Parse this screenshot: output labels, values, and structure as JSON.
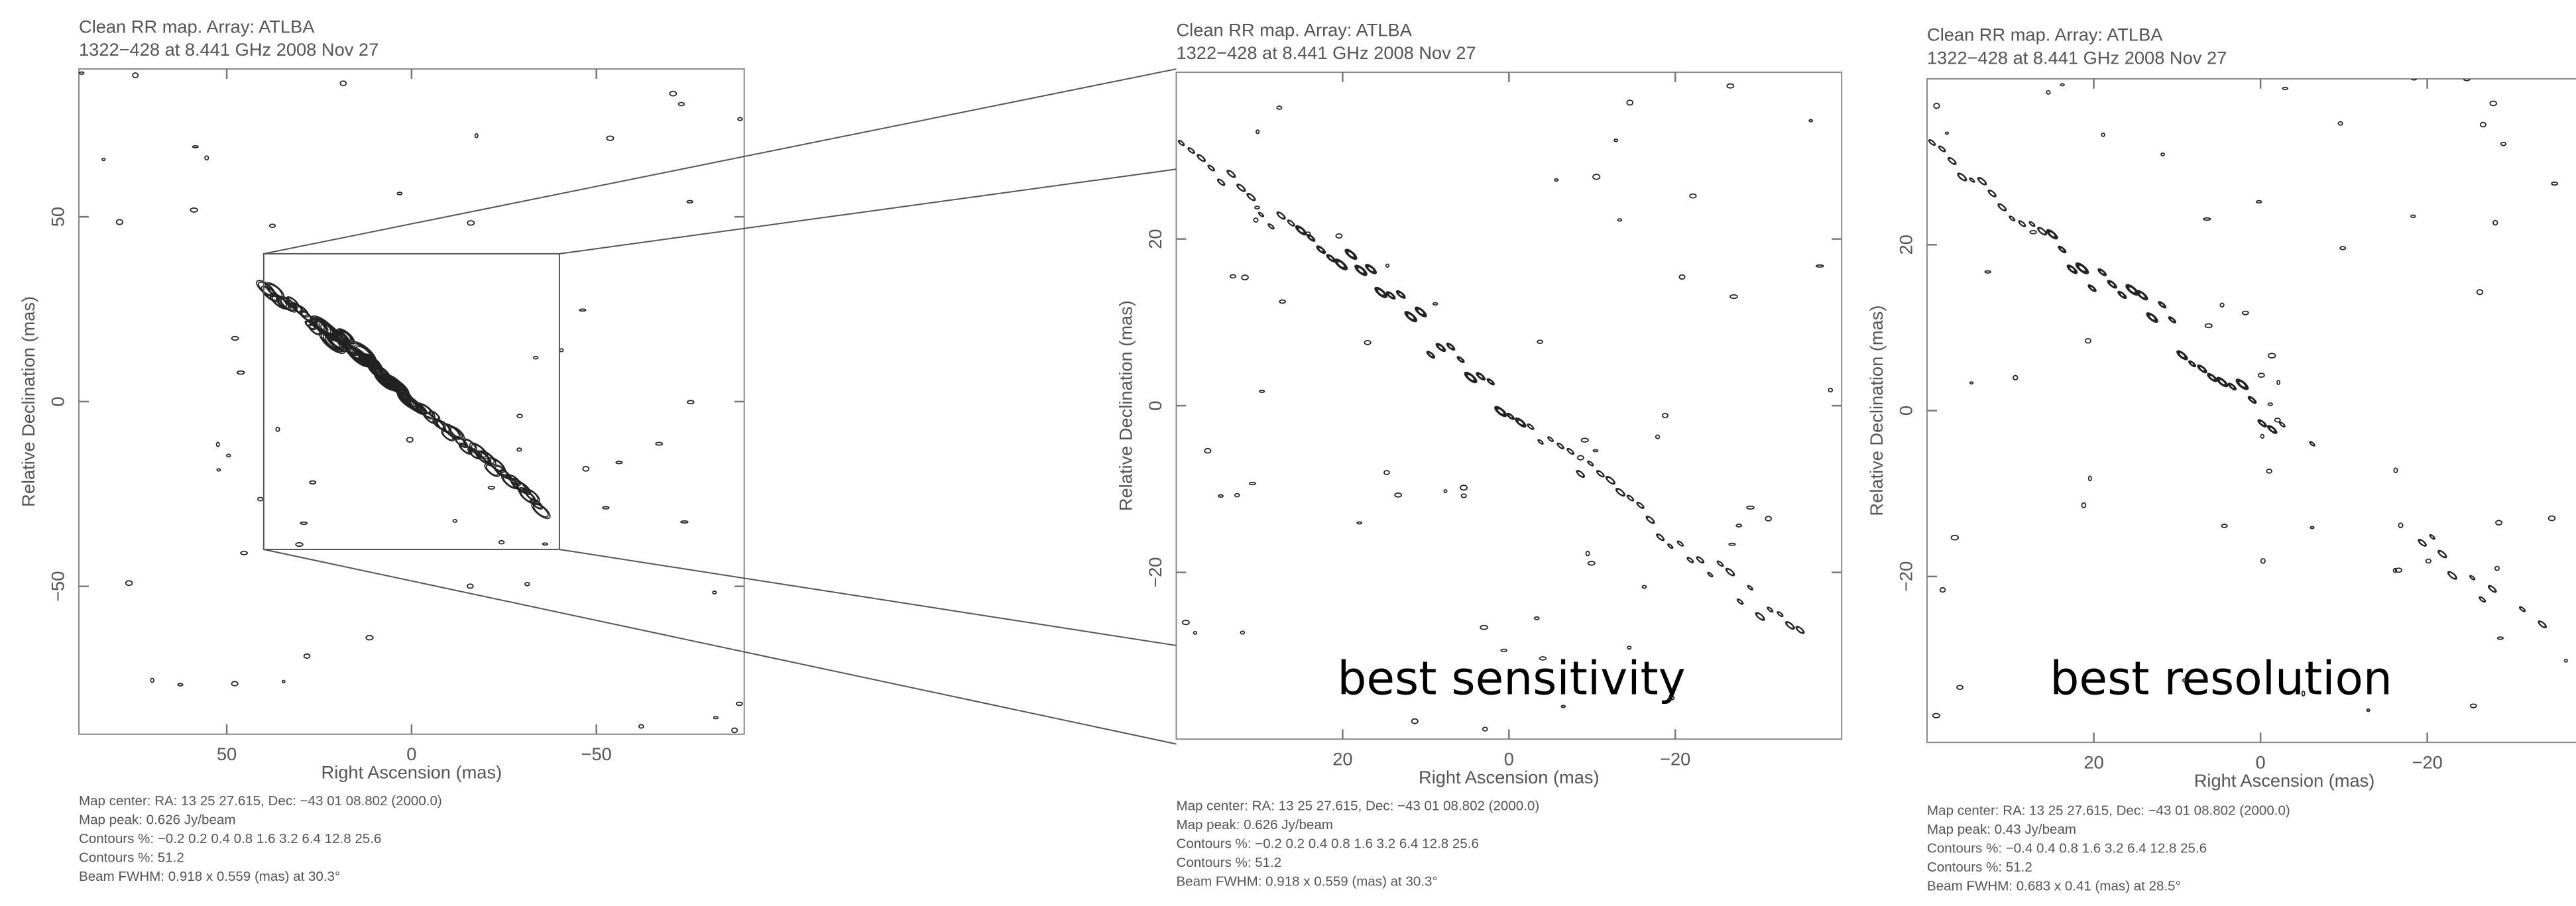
{
  "chart_data": [
    {
      "type": "contour",
      "title": "Clean RR map.  Array:  ATLBA",
      "subtitle": "1322−428 at 8.441 GHz 2008 Nov 27",
      "xlabel": "Right Ascension   (mas)",
      "ylabel": "Relative Declination   (mas)",
      "xlim": [
        90,
        -90
      ],
      "ylim": [
        -90,
        90
      ],
      "xticks": [
        50,
        0,
        {
          "value": -50,
          "label": "−50"
        }
      ],
      "yticks": [
        {
          "value": -50,
          "label": "−50"
        },
        0,
        50
      ],
      "notes": [
        "Map center:  RA: 13 25 27.615,  Dec: −43 01 08.802 (2000.0)",
        "Map peak: 0.626 Jy/beam",
        "Contours %: −0.2 0.2 0.4 0.8 1.6 3.2 6.4 12.8 25.6",
        "Contours %: 51.2",
        "Beam FWHM: 0.918 x 0.559 (mas) at 30.3°"
      ]
    },
    {
      "type": "contour",
      "title": "Clean RR map.  Array:  ATLBA",
      "subtitle": "1322−428 at 8.441 GHz 2008 Nov 27",
      "xlabel": "Right Ascension   (mas)",
      "ylabel": "Relative Declination   (mas)",
      "xlim": [
        40,
        -40
      ],
      "ylim": [
        -40,
        40
      ],
      "xticks": [
        20,
        0,
        {
          "value": -20,
          "label": "−20"
        }
      ],
      "yticks": [
        {
          "value": -20,
          "label": "−20"
        },
        0,
        20
      ],
      "notes": [
        "Map center:  RA: 13 25 27.615,  Dec: −43 01 08.802 (2000.0)",
        "Map peak: 0.626 Jy/beam",
        "Contours %: −0.2 0.2 0.4 0.8 1.6 3.2 6.4 12.8 25.6",
        "Contours %: 51.2",
        "Beam FWHM: 0.918 x 0.559 (mas) at 30.3°"
      ],
      "annotation": "best sensitivity"
    },
    {
      "type": "contour",
      "title": "Clean RR map.  Array:  ATLBA",
      "subtitle": "1322−428 at 8.441 GHz 2008 Nov 27",
      "xlabel": "Right Ascension   (mas)",
      "ylabel": "Relative Declination   (mas)",
      "xlim": [
        40,
        -40
      ],
      "ylim": [
        -40,
        40
      ],
      "xticks": [
        20,
        0,
        {
          "value": -20,
          "label": "−20"
        }
      ],
      "yticks": [
        {
          "value": -20,
          "label": "−20"
        },
        0,
        20
      ],
      "notes": [
        "Map center:  RA: 13 25 27.615,  Dec: −43 01 08.802 (2000.0)",
        "Map peak: 0.43 Jy/beam",
        "Contours %: −0.4 0.4 0.8 1.6 3.2 6.4 12.8 25.6",
        "Contours %: 51.2",
        "Beam FWHM: 0.683 x 0.41 (mas) at 28.5°"
      ],
      "annotation": "best resolution"
    }
  ]
}
